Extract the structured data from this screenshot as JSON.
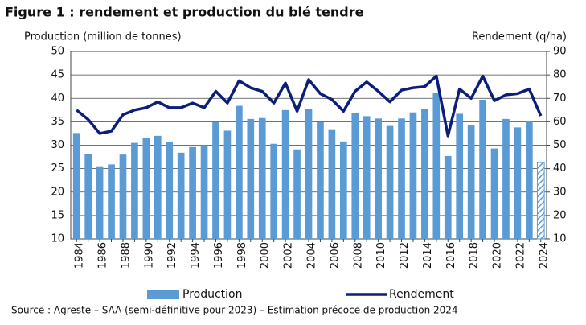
{
  "chart_data": {
    "type": "bar_line",
    "title": "Figure 1 : rendement et production du blé tendre",
    "y_label": "Production (million de tonnes)",
    "y2_label": "Rendement (q/ha)",
    "source": "Source : Agreste – SAA (semi-définitive pour 2023) – Estimation précoce de production 2024",
    "categories": [
      "1984",
      null,
      "1986",
      null,
      "1988",
      null,
      "1990",
      null,
      "1992",
      null,
      "1994",
      null,
      "1996",
      null,
      "1998",
      null,
      "2000",
      null,
      "2002",
      null,
      "2004",
      null,
      "2006",
      null,
      "2008",
      null,
      "2010",
      null,
      "2012",
      null,
      "2014",
      null,
      "2016",
      null,
      "2018",
      null,
      "2020",
      null,
      "2022",
      null,
      "2024"
    ],
    "series": [
      {
        "name": "Production",
        "color": "#5b9bd5",
        "type": "bar",
        "values": [
          32.6,
          28.2,
          25.5,
          25.9,
          28.0,
          30.5,
          31.6,
          32.0,
          30.7,
          28.4,
          29.6,
          30.0,
          35.0,
          33.1,
          38.4,
          35.6,
          35.8,
          30.3,
          37.5,
          29.1,
          37.7,
          35.0,
          33.4,
          30.8,
          36.8,
          36.2,
          35.7,
          34.1,
          35.7,
          37.0,
          37.7,
          41.2,
          27.7,
          36.7,
          34.2,
          39.7,
          29.3,
          35.6,
          33.8,
          35.1,
          26.3
        ]
      },
      {
        "name": "Rendement",
        "color": "#0b1f7a",
        "type": "line",
        "axis": "y2",
        "values": [
          65,
          61,
          55,
          56,
          63,
          65,
          66,
          68.5,
          66,
          66,
          68,
          66,
          73,
          68,
          77.5,
          74.5,
          73,
          68,
          76.5,
          64.5,
          78,
          72,
          69.5,
          64.5,
          73,
          77,
          73,
          68.5,
          73.5,
          74.5,
          75,
          79.5,
          54,
          74,
          70,
          79.5,
          69,
          71.5,
          72,
          74,
          62.5
        ]
      }
    ],
    "ylim": [
      10,
      50
    ],
    "yticks": [
      10,
      15,
      20,
      25,
      30,
      35,
      40,
      45,
      50
    ],
    "y2lim": [
      10,
      90
    ],
    "y2ticks": [
      10,
      20,
      30,
      40,
      50,
      60,
      70,
      80,
      90
    ],
    "grid": true
  }
}
